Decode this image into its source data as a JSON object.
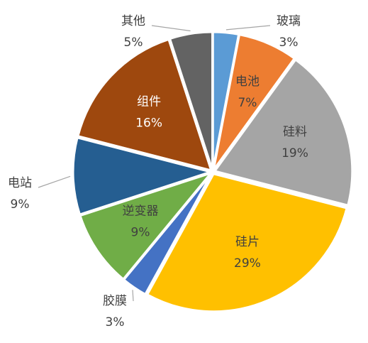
{
  "chart_data": {
    "type": "pie",
    "categories": [
      "玻璃",
      "电池",
      "硅料",
      "硅片",
      "胶膜",
      "逆变器",
      "电站",
      "组件",
      "其他"
    ],
    "values": [
      3,
      7,
      19,
      29,
      3,
      9,
      9,
      16,
      5
    ],
    "value_labels": [
      "3%",
      "7%",
      "19%",
      "29%",
      "3%",
      "9%",
      "9%",
      "16%",
      "5%"
    ],
    "colors": [
      "#5b9bd5",
      "#ed7d31",
      "#a5a5a5",
      "#ffc000",
      "#4472c4",
      "#70ad47",
      "#255e91",
      "#9e480e",
      "#636363"
    ]
  }
}
